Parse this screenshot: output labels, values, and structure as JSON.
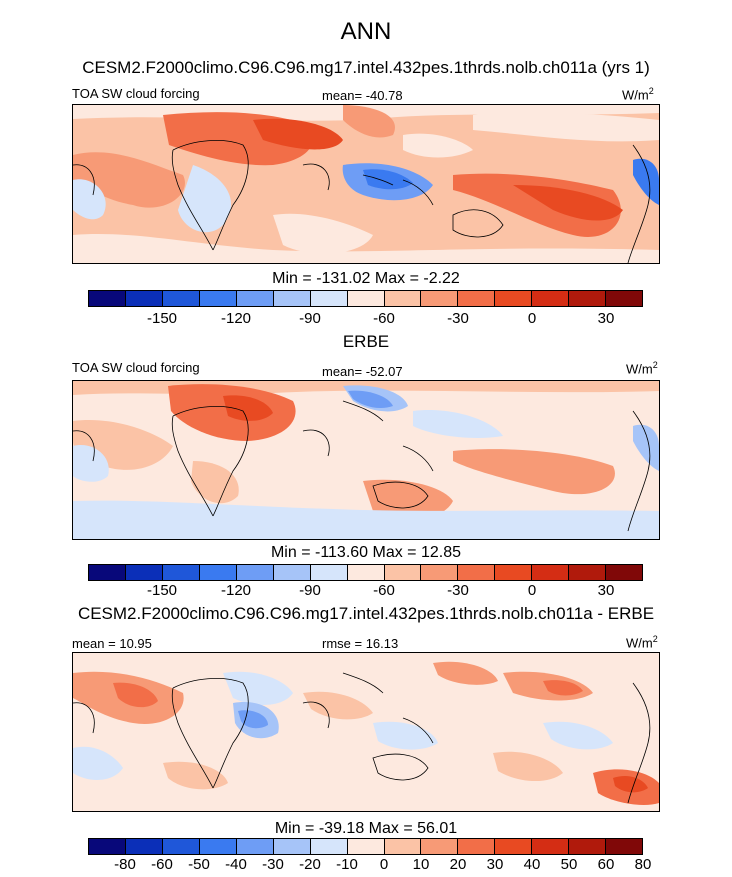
{
  "header": {
    "title": "ANN"
  },
  "palette": {
    "colors": [
      "#08087a",
      "#0b2fb8",
      "#1f57d9",
      "#3a7af0",
      "#6e9df5",
      "#a6c4f8",
      "#d6e5fb",
      "#fde9df",
      "#fbc3a6",
      "#f79a76",
      "#f26e48",
      "#e84a22",
      "#d42d14",
      "#b01a0c",
      "#800808"
    ]
  },
  "chart_data": [
    {
      "type": "heatmap",
      "title": "CESM2.F2000climo.C96.C96.mg17.intel.432pes.1thrds.nolb.ch011a (yrs 1)",
      "variable": "TOA SW cloud forcing",
      "mean_label": "mean= -40.78",
      "units_main": "W/m",
      "units_sup": "2",
      "minmax": "Min = -131.02 Max =  -2.22",
      "colorbar_ticks": [
        "-150",
        "-120",
        "-90",
        "-60",
        "-30",
        "0",
        "30"
      ]
    },
    {
      "type": "heatmap",
      "title": "ERBE",
      "variable": "TOA SW cloud forcing",
      "mean_label": "mean= -52.07",
      "units_main": "W/m",
      "units_sup": "2",
      "minmax": "Min = -113.60 Max =  12.85",
      "colorbar_ticks": [
        "-150",
        "-120",
        "-90",
        "-60",
        "-30",
        "0",
        "30"
      ]
    },
    {
      "type": "heatmap",
      "title": "CESM2.F2000climo.C96.C96.mg17.intel.432pes.1thrds.nolb.ch011a - ERBE",
      "left_label": "mean =  10.95",
      "rmse_label": "rmse =  16.13",
      "units_main": "W/m",
      "units_sup": "2",
      "minmax": "Min = -39.18 Max =  56.01",
      "colorbar_ticks": [
        "-80",
        "-60",
        "-50",
        "-40",
        "-30",
        "-20",
        "-10",
        "0",
        "10",
        "20",
        "30",
        "40",
        "50",
        "60",
        "80"
      ]
    }
  ]
}
